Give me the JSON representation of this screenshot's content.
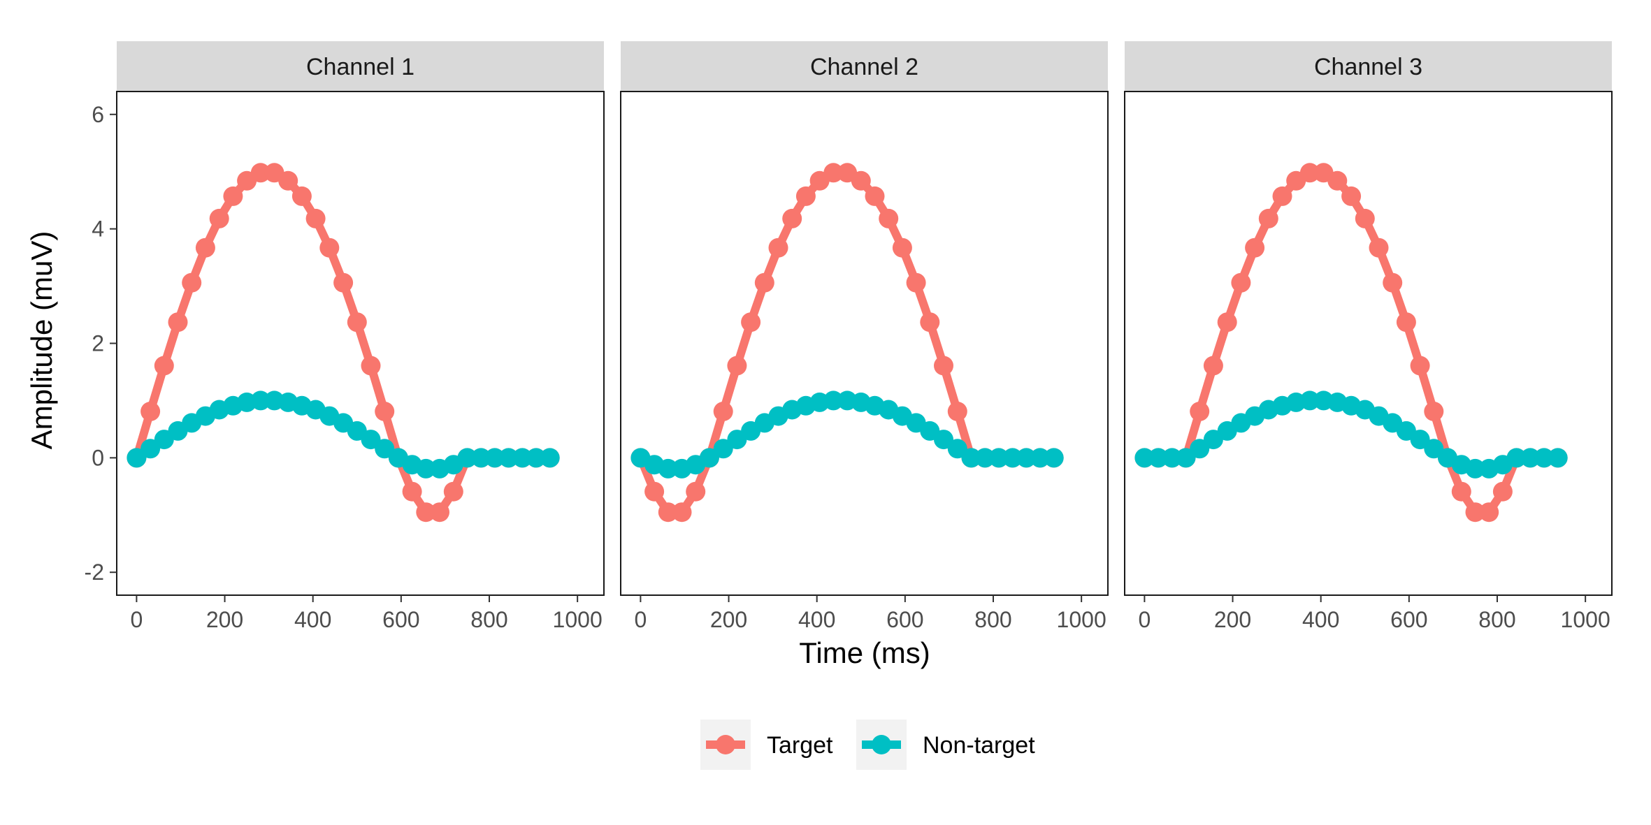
{
  "chart_data": {
    "type": "line",
    "xlabel": "Time (ms)",
    "ylabel": "Amplitude (muV)",
    "xlim": [
      -45,
      1060
    ],
    "ylim": [
      -2.4,
      6.4
    ],
    "x_ticks": [
      0,
      200,
      400,
      600,
      800,
      1000
    ],
    "y_ticks": [
      -2,
      0,
      2,
      4,
      6
    ],
    "x_tick_labels": [
      "0",
      "200",
      "400",
      "600",
      "800",
      "1000"
    ],
    "y_tick_labels": [
      "-2",
      "0",
      "2",
      "4",
      "6"
    ],
    "grid": false,
    "legend_position": "bottom",
    "x": [
      0,
      31.25,
      62.5,
      93.75,
      125,
      156.25,
      187.5,
      218.75,
      250,
      281.25,
      312.5,
      343.75,
      375,
      406.25,
      437.5,
      468.75,
      500,
      531.25,
      562.5,
      593.75,
      625,
      656.25,
      687.5,
      718.75,
      750,
      781.25,
      812.5,
      843.75,
      875,
      906.25,
      937.5
    ],
    "series_colors": {
      "Target": "#F8766D",
      "Non-target": "#00BFC4"
    },
    "panels": [
      {
        "title": "Channel 1",
        "series": [
          {
            "name": "Target",
            "values": [
              0,
              0.81,
              1.61,
              2.37,
              3.06,
              3.67,
              4.18,
              4.57,
              4.84,
              4.98,
              4.98,
              4.84,
              4.57,
              4.18,
              3.67,
              3.06,
              2.37,
              1.61,
              0.81,
              0,
              -0.59,
              -0.95,
              -0.95,
              -0.59,
              0,
              0,
              0,
              0,
              0,
              0,
              0
            ]
          },
          {
            "name": "Non-target",
            "values": [
              0,
              0.16,
              0.32,
              0.47,
              0.61,
              0.73,
              0.84,
              0.91,
              0.97,
              1.0,
              1.0,
              0.97,
              0.91,
              0.84,
              0.73,
              0.61,
              0.47,
              0.32,
              0.16,
              0,
              -0.12,
              -0.19,
              -0.19,
              -0.12,
              0,
              0,
              0,
              0,
              0,
              0,
              0
            ]
          }
        ]
      },
      {
        "title": "Channel 2",
        "series": [
          {
            "name": "Target",
            "values": [
              0,
              -0.59,
              -0.95,
              -0.95,
              -0.59,
              0,
              0.81,
              1.61,
              2.37,
              3.06,
              3.67,
              4.18,
              4.57,
              4.84,
              4.98,
              4.98,
              4.84,
              4.57,
              4.18,
              3.67,
              3.06,
              2.37,
              1.61,
              0.81,
              0,
              0,
              0,
              0,
              0,
              0,
              0
            ]
          },
          {
            "name": "Non-target",
            "values": [
              0,
              -0.12,
              -0.19,
              -0.19,
              -0.12,
              0,
              0.16,
              0.32,
              0.47,
              0.61,
              0.73,
              0.84,
              0.91,
              0.97,
              1.0,
              1.0,
              0.97,
              0.91,
              0.84,
              0.73,
              0.61,
              0.47,
              0.32,
              0.16,
              0,
              0,
              0,
              0,
              0,
              0,
              0
            ]
          }
        ]
      },
      {
        "title": "Channel 3",
        "series": [
          {
            "name": "Target",
            "values": [
              0,
              0,
              0,
              0,
              0.81,
              1.61,
              2.37,
              3.06,
              3.67,
              4.18,
              4.57,
              4.84,
              4.98,
              4.98,
              4.84,
              4.57,
              4.18,
              3.67,
              3.06,
              2.37,
              1.61,
              0.81,
              0,
              -0.59,
              -0.95,
              -0.95,
              -0.59,
              0,
              0,
              0,
              0
            ]
          },
          {
            "name": "Non-target",
            "values": [
              0,
              0,
              0,
              0,
              0.16,
              0.32,
              0.47,
              0.61,
              0.73,
              0.84,
              0.91,
              0.97,
              1.0,
              1.0,
              0.97,
              0.91,
              0.84,
              0.73,
              0.61,
              0.47,
              0.32,
              0.16,
              0,
              -0.12,
              -0.19,
              -0.19,
              -0.12,
              0,
              0,
              0,
              0
            ]
          }
        ]
      }
    ],
    "legend": [
      {
        "name": "Target",
        "color": "#F8766D"
      },
      {
        "name": "Non-target",
        "color": "#00BFC4"
      }
    ]
  }
}
